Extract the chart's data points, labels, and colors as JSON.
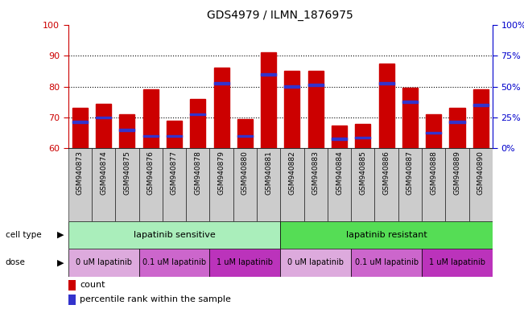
{
  "title": "GDS4979 / ILMN_1876975",
  "samples": [
    "GSM940873",
    "GSM940874",
    "GSM940875",
    "GSM940876",
    "GSM940877",
    "GSM940878",
    "GSM940879",
    "GSM940880",
    "GSM940881",
    "GSM940882",
    "GSM940883",
    "GSM940884",
    "GSM940885",
    "GSM940886",
    "GSM940887",
    "GSM940888",
    "GSM940889",
    "GSM940890"
  ],
  "bar_heights": [
    73,
    74.5,
    71,
    79,
    69,
    76,
    86,
    69.5,
    91,
    85,
    85,
    67.5,
    68,
    87.5,
    79.5,
    71,
    73,
    79
  ],
  "blue_markers": [
    68.5,
    70,
    66,
    64,
    64,
    71,
    81,
    64,
    84,
    80,
    80.5,
    63,
    63.5,
    81,
    75,
    65,
    68.5,
    74
  ],
  "ylim": [
    60,
    100
  ],
  "yticks_left": [
    60,
    70,
    80,
    90,
    100
  ],
  "bar_color": "#cc0000",
  "blue_color": "#3333cc",
  "cell_type_colors": [
    "#aaeebb",
    "#55dd55"
  ],
  "dose_colors": [
    "#ddaadd",
    "#cc66cc",
    "#bb33bb"
  ],
  "cell_type_labels": [
    "lapatinib sensitive",
    "lapatinib resistant"
  ],
  "dose_labels": [
    "0 uM lapatinib",
    "0.1 uM lapatinib",
    "1 uM lapatinib"
  ],
  "background_color": "#ffffff",
  "bar_width": 0.65,
  "xticklabel_fontsize": 6.5,
  "ylabel_left_color": "#cc0000",
  "ylabel_right_color": "#0000cc",
  "xtick_bg": "#cccccc"
}
